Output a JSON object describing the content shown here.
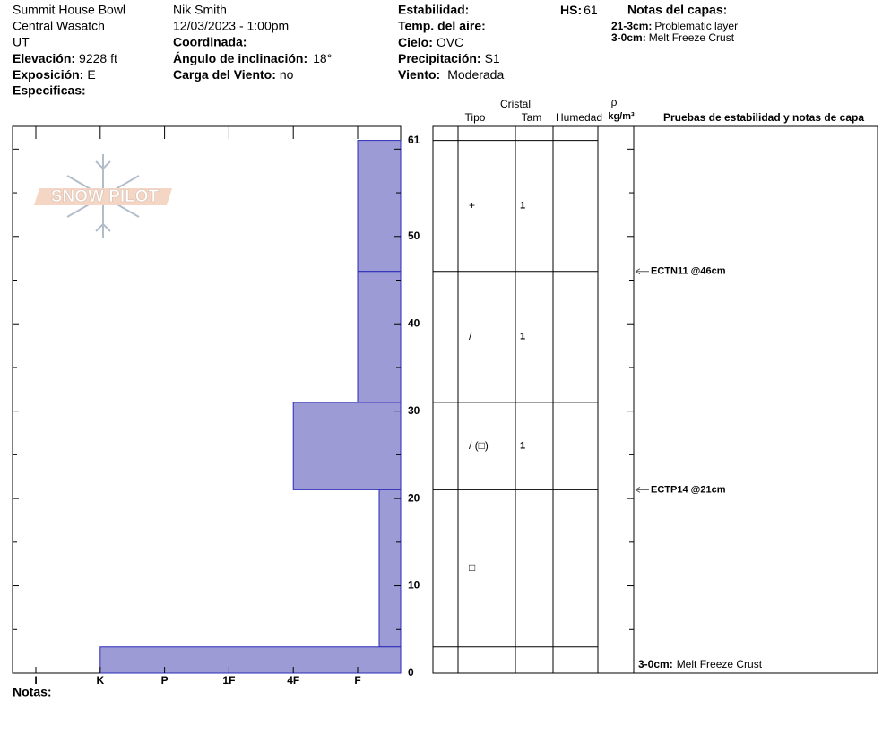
{
  "header": {
    "location": "Summit House Bowl",
    "range": "Central Wasatch",
    "state": "UT",
    "elevation": {
      "label": "Elevación:",
      "value": "9228 ft"
    },
    "aspect": {
      "label": "Exposición:",
      "value": "E"
    },
    "specifics": {
      "label": "Especificas:"
    },
    "observer": "Nik Smith",
    "datetime": "12/03/2023 - 1:00pm",
    "coordinates": {
      "label": "Coordinada:"
    },
    "slope": {
      "label": "Ángulo de inclinación:",
      "value": "18°"
    },
    "wind_load": {
      "label": "Carga del Viento:",
      "value": "no"
    },
    "stability": {
      "label": "Estabilidad:"
    },
    "air_temp": {
      "label": "Temp. del aire:"
    },
    "sky": {
      "label": "Cielo:",
      "value": "OVC"
    },
    "precip": {
      "label": "Precipitación:",
      "value": "S1"
    },
    "wind": {
      "label": "Viento:",
      "value": "Moderada"
    },
    "hs": {
      "label": "HS:",
      "value": 61
    },
    "layer_notes_title": "Notas del capas:",
    "layer_notes": [
      {
        "range": "21-3cm:",
        "note": "Problematic layer"
      },
      {
        "range": "3-0cm:",
        "note": "Melt Freeze Crust"
      }
    ]
  },
  "logo": "SNOW PILOT",
  "profile": {
    "ylim": [
      0,
      62.6
    ],
    "yticks": [
      0,
      10,
      20,
      30,
      40,
      50,
      61
    ],
    "minor_ticks": [
      5,
      10,
      15,
      20,
      25,
      30,
      35,
      40,
      45,
      50,
      55,
      60
    ],
    "hardness_ticks": [
      {
        "value": 6,
        "label": "I"
      },
      {
        "value": 5,
        "label": "K"
      },
      {
        "value": 4,
        "label": "P"
      },
      {
        "value": 3,
        "label": "1F"
      },
      {
        "value": 2,
        "label": "4F"
      },
      {
        "value": 1,
        "label": "F"
      }
    ],
    "fill_color": "#9c9bd6",
    "line_color": "#2a2ab8",
    "layers": [
      {
        "top": 61,
        "bottom": 46,
        "hardness": 1,
        "grain": "+",
        "size": 1
      },
      {
        "top": 46,
        "bottom": 31,
        "hardness": 1,
        "grain": "/",
        "size": 1
      },
      {
        "top": 31,
        "bottom": 21,
        "hardness": 2,
        "grain": "/ (□)",
        "size": 1
      },
      {
        "top": 21,
        "bottom": 3,
        "hardness": 0.5,
        "grain": "□"
      },
      {
        "top": 3,
        "bottom": 0,
        "hardness": 5
      }
    ]
  },
  "table": {
    "crystal": "Cristal",
    "type": "Tipo",
    "size": "Tam",
    "moisture": "Humedad",
    "rho": "ρ",
    "density_unit": "kg/m³",
    "tests_title": "Pruebas de estabilidad y notas de capa"
  },
  "tests": [
    {
      "depth": 46,
      "label": "ECTN11 @46cm"
    },
    {
      "depth": 21,
      "label": "ECTP14 @21cm"
    }
  ],
  "notes_label": "Notas:"
}
